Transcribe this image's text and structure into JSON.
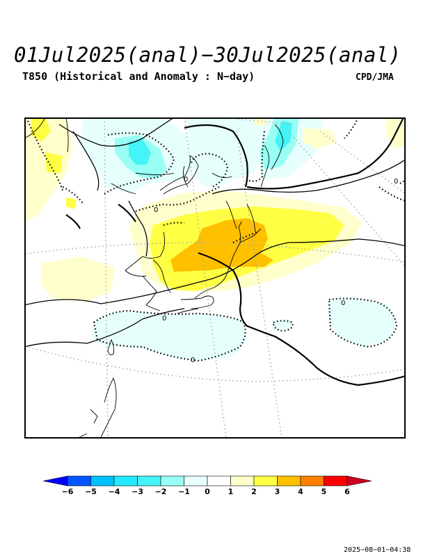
{
  "title": "01Jul2025(anal)−30Jul2025(anal)",
  "subtitle": "T850 (Historical and Anomaly : N−day)",
  "agency": "CPD/JMA",
  "timestamp": "2025−08−01−04:38",
  "map": {
    "contour_labels": [
      "0",
      "0",
      "0",
      "0",
      "0",
      "0"
    ]
  },
  "colorbar": {
    "ticks": [
      "−6",
      "−5",
      "−4",
      "−3",
      "−2",
      "−1",
      "0",
      "1",
      "2",
      "3",
      "4",
      "5",
      "6"
    ],
    "colors": [
      "#0000ff",
      "#0055ff",
      "#00c0ff",
      "#22eaff",
      "#44f4f8",
      "#99fff4",
      "#e6fffd",
      "#ffffff",
      "#ffffcc",
      "#ffff44",
      "#ffc000",
      "#ff8000",
      "#ff0000",
      "#cc0022"
    ]
  }
}
